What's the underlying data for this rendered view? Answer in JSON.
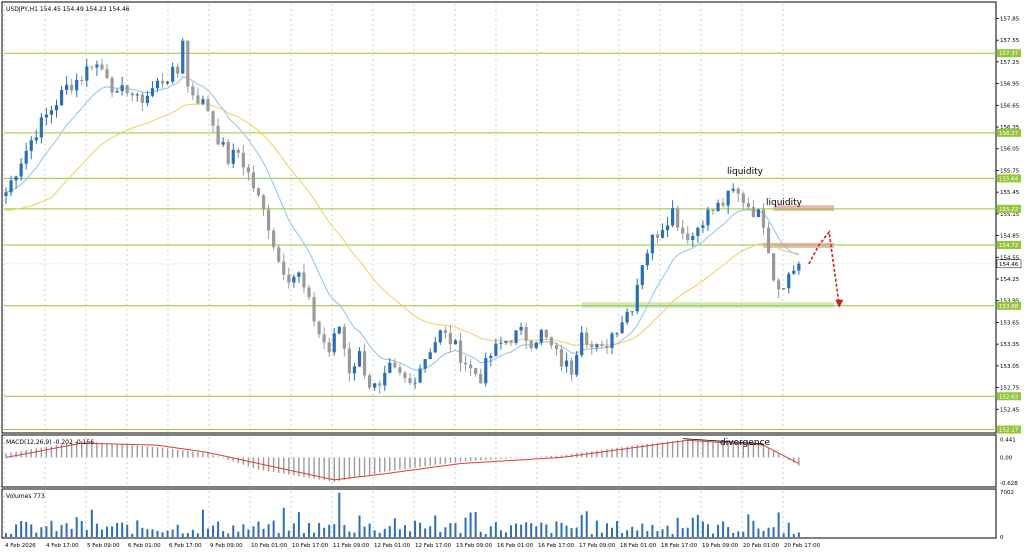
{
  "chart_title": "USDJPY,H1  154.45 154.49 154.23 154.46",
  "colors": {
    "bull": "#2a6fb5",
    "bear": "#9a9a9a",
    "ma_fast": "#8fc3e8",
    "ma_slow": "#f2cf5a",
    "level": "#93c63b",
    "macd_signal": "#e23b3b",
    "zone_red": "#e7a3a3",
    "zone_green": "#bfe0a8",
    "arrow": "#d02020"
  },
  "price_axis": {
    "ticks": [
      "157.85",
      "157.55",
      "157.25",
      "156.95",
      "156.65",
      "156.35",
      "156.05",
      "155.75",
      "155.45",
      "155.15",
      "154.85",
      "154.55",
      "154.25",
      "153.95",
      "153.65",
      "153.35",
      "153.05",
      "152.75",
      "152.45"
    ],
    "range": [
      152.15,
      158.05
    ]
  },
  "levels": [
    {
      "price": 157.37,
      "label": "157.37"
    },
    {
      "price": 156.27,
      "label": "156.27"
    },
    {
      "price": 155.64,
      "label": "155.64"
    },
    {
      "price": 155.22,
      "label": "155.22"
    },
    {
      "price": 154.72,
      "label": "154.72"
    },
    {
      "price": 153.88,
      "label": "153.88"
    },
    {
      "price": 152.63,
      "label": "152.63"
    },
    {
      "price": 152.17,
      "label": "152.17"
    }
  ],
  "current_price": "154.46",
  "annotations": {
    "liquidity_top": "liquidity",
    "liquidity_zone": "liquidity",
    "divergence": "divergence"
  },
  "macd": {
    "label": "MACD(12,26,9) -0.202 -0.156",
    "ticks": [
      "0.441",
      "0.00",
      "-0.628"
    ],
    "range": [
      -0.7,
      0.5
    ]
  },
  "volumes": {
    "label": "Volumes 773",
    "ticks": [
      "7002",
      "0"
    ],
    "max": 7002
  },
  "time_axis": [
    "4 Feb 2026",
    "4 Feb 17:00",
    "5 Feb 09:00",
    "6 Feb 01:00",
    "6 Feb 17:00",
    "9 Feb 09:00",
    "10 Feb 01:00",
    "10 Feb 17:00",
    "11 Feb 09:00",
    "12 Feb 01:00",
    "12 Feb 17:00",
    "13 Feb 09:00",
    "16 Feb 01:00",
    "16 Feb 17:00",
    "17 Feb 09:00",
    "18 Feb 01:00",
    "18 Feb 17:00",
    "19 Feb 09:00",
    "20 Feb 01:00",
    "20 Feb 17:00"
  ],
  "chart_data": {
    "type": "candlestick",
    "symbol": "USDJPY",
    "timeframe": "H1",
    "close_path": [
      [
        0,
        155.45
      ],
      [
        3,
        155.9
      ],
      [
        6,
        156.3
      ],
      [
        9,
        156.6
      ],
      [
        12,
        156.9
      ],
      [
        15,
        157.05
      ],
      [
        17,
        157.25
      ],
      [
        20,
        157.1
      ],
      [
        22,
        156.75
      ],
      [
        24,
        156.9
      ],
      [
        26,
        156.7
      ],
      [
        28,
        156.8
      ],
      [
        30,
        156.95
      ],
      [
        32,
        157.05
      ],
      [
        34,
        157.1
      ],
      [
        35,
        157.6
      ],
      [
        36,
        156.9
      ],
      [
        38,
        156.75
      ],
      [
        40,
        156.6
      ],
      [
        42,
        156.2
      ],
      [
        44,
        155.9
      ],
      [
        46,
        156.0
      ],
      [
        48,
        155.7
      ],
      [
        50,
        155.35
      ],
      [
        52,
        155.0
      ],
      [
        54,
        154.5
      ],
      [
        56,
        154.3
      ],
      [
        58,
        154.3
      ],
      [
        60,
        153.9
      ],
      [
        62,
        153.5
      ],
      [
        64,
        153.25
      ],
      [
        66,
        153.6
      ],
      [
        68,
        153.0
      ],
      [
        70,
        153.2
      ],
      [
        72,
        152.8
      ],
      [
        74,
        152.7
      ],
      [
        76,
        153.0
      ],
      [
        78,
        152.9
      ],
      [
        80,
        152.8
      ],
      [
        82,
        153.05
      ],
      [
        84,
        153.3
      ],
      [
        86,
        153.5
      ],
      [
        88,
        153.4
      ],
      [
        90,
        153.2
      ],
      [
        92,
        153.0
      ],
      [
        94,
        152.9
      ],
      [
        96,
        153.2
      ],
      [
        98,
        153.35
      ],
      [
        100,
        153.45
      ],
      [
        102,
        153.5
      ],
      [
        104,
        153.4
      ],
      [
        106,
        153.5
      ],
      [
        108,
        153.3
      ],
      [
        110,
        153.1
      ],
      [
        112,
        153.0
      ],
      [
        114,
        153.6
      ],
      [
        116,
        153.3
      ],
      [
        118,
        153.25
      ],
      [
        120,
        153.5
      ],
      [
        122,
        153.7
      ],
      [
        124,
        153.9
      ],
      [
        126,
        154.5
      ],
      [
        128,
        154.8
      ],
      [
        130,
        155.0
      ],
      [
        132,
        155.2
      ],
      [
        134,
        154.9
      ],
      [
        136,
        154.85
      ],
      [
        138,
        155.1
      ],
      [
        140,
        155.2
      ],
      [
        142,
        155.3
      ],
      [
        144,
        155.45
      ],
      [
        146,
        155.35
      ],
      [
        148,
        155.2
      ],
      [
        150,
        155.05
      ],
      [
        151,
        154.7
      ],
      [
        152,
        154.3
      ],
      [
        153,
        154.15
      ],
      [
        155,
        154.3
      ],
      [
        157,
        154.46
      ]
    ],
    "projection": [
      [
        157,
        154.46
      ],
      [
        159,
        154.72
      ],
      [
        161,
        154.9
      ],
      [
        163,
        153.88
      ]
    ],
    "liquidity_zone": [
      154.75,
      154.68
    ],
    "liquidity_zone_2": [
      155.27,
      155.19
    ],
    "support_zone": [
      153.93,
      153.85
    ],
    "macd_hist_path": [
      [
        0,
        0.1
      ],
      [
        15,
        0.4
      ],
      [
        30,
        0.25
      ],
      [
        40,
        0.1
      ],
      [
        50,
        -0.3
      ],
      [
        65,
        -0.6
      ],
      [
        75,
        -0.35
      ],
      [
        90,
        -0.1
      ],
      [
        110,
        0.05
      ],
      [
        125,
        0.3
      ],
      [
        135,
        0.44
      ],
      [
        150,
        0.3
      ],
      [
        157,
        -0.2
      ]
    ],
    "macd_signal_path": [
      [
        0,
        0.0
      ],
      [
        15,
        0.35
      ],
      [
        30,
        0.3
      ],
      [
        40,
        0.12
      ],
      [
        50,
        -0.15
      ],
      [
        65,
        -0.55
      ],
      [
        75,
        -0.4
      ],
      [
        90,
        -0.15
      ],
      [
        110,
        0.0
      ],
      [
        125,
        0.25
      ],
      [
        135,
        0.42
      ],
      [
        150,
        0.3
      ],
      [
        157,
        -0.15
      ]
    ]
  }
}
